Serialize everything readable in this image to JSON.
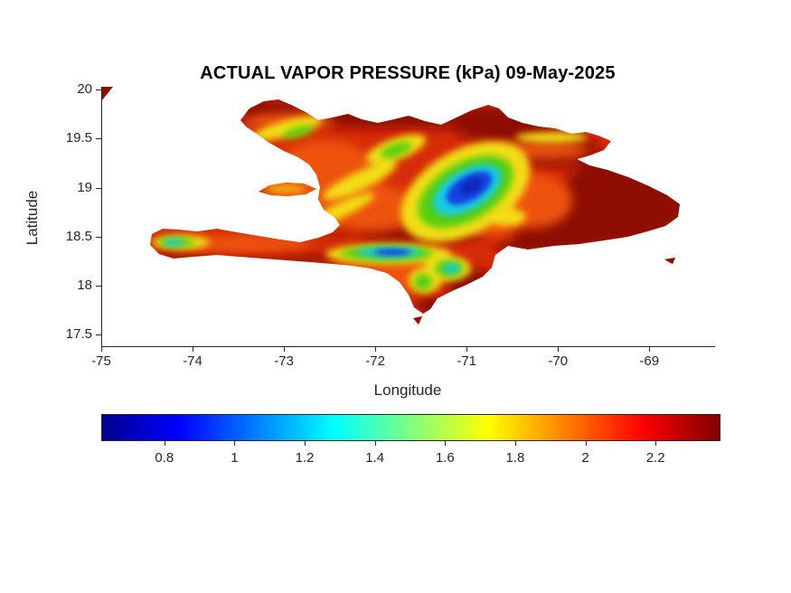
{
  "window": {
    "background": "#ffffff"
  },
  "chart_data": {
    "type": "heatmap",
    "title": "ACTUAL VAPOR PRESSURE (kPa) 09-May-2025",
    "xlabel": "Longitude",
    "ylabel": "Latitude",
    "x_ticks": [
      -75,
      -74,
      -73,
      -72,
      -71,
      -70,
      -69
    ],
    "y_ticks": [
      20,
      19.5,
      19,
      18.5,
      18,
      17.5
    ],
    "xlim": [
      -75,
      -68.29
    ],
    "ylim": [
      17.38,
      20.03
    ],
    "grid": false,
    "map_region": "Hispaniola (Haiti and Dominican Republic) with Gonave, Beata and Saona islets",
    "colormap": "jet",
    "colorbar": {
      "orientation": "horizontal",
      "position": "below x-axis",
      "ticks": [
        0.8,
        1,
        1.2,
        1.4,
        1.6,
        1.8,
        2,
        2.2
      ],
      "range": [
        0.62,
        2.38
      ],
      "stops": [
        "#00008f",
        "#0000ff",
        "#00ffff",
        "#ffff00",
        "#ff0000",
        "#800000"
      ]
    },
    "value_summary": [
      {
        "region": "Cordillera Central mountains (about -71.2, 19.0)",
        "approx_kPa": "0.7-1.2",
        "color": "blue/cyan core"
      },
      {
        "region": "Sierra de Bahoruco / Massif de la Selle ridge (about -71.8, 18.35)",
        "approx_kPa": "0.9-1.4",
        "color": "cyan/green band"
      },
      {
        "region": "Massif de la Hotte at west tip of southern peninsula",
        "approx_kPa": "1.1-1.5",
        "color": "cyan/green patch"
      },
      {
        "region": "Eastern plains, north and south coasts",
        "approx_kPa": "2.2-2.3",
        "color": "dark red"
      },
      {
        "region": "Other lowlands and valleys",
        "approx_kPa": "1.8-2.2",
        "color": "red/orange"
      },
      {
        "region": "Mid-elevation slopes",
        "approx_kPa": "1.5-1.8",
        "color": "yellow/green"
      }
    ]
  }
}
